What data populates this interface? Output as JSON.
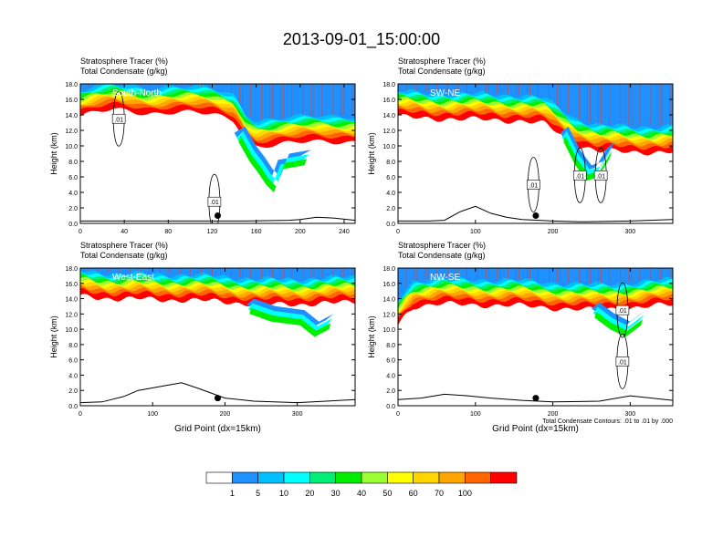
{
  "figure_title": "2013-09-01_15:00:00",
  "footnote": "Total Condensate Contours: .01 to .01 by .000",
  "colors": {
    "background": "#ffffff",
    "axis": "#000000",
    "contour": "#000000",
    "label_text": "#ffffff"
  },
  "chart_data": [
    {
      "type": "heatmap",
      "panel": "South-North",
      "header_line1": "Stratosphere Tracer   (%)",
      "header_line2": "Total Condensate   (g/kg)",
      "ylabel": "Height (km)",
      "xlabel": "",
      "xlim": [
        0,
        250
      ],
      "ylim": [
        0,
        18
      ],
      "xticks": [
        0,
        40,
        80,
        120,
        160,
        200,
        240
      ],
      "xtick_labels": [
        "0",
        "40",
        "80",
        "120",
        "160",
        "200",
        "240"
      ],
      "yticks": [
        0,
        2,
        4,
        6,
        8,
        10,
        12,
        14,
        16,
        18
      ],
      "ytick_labels": [
        "0.0",
        "2.0",
        "4.0",
        "6.0",
        "8.0",
        "10.0",
        "12.0",
        "14.0",
        "16.0",
        "18.0"
      ],
      "tracer_base_km": [
        [
          0,
          13.8
        ],
        [
          15,
          14.3
        ],
        [
          30,
          14.6
        ],
        [
          45,
          14.5
        ],
        [
          60,
          14.2
        ],
        [
          80,
          14.4
        ],
        [
          100,
          14.3
        ],
        [
          120,
          14.0
        ],
        [
          140,
          13.3
        ],
        [
          150,
          11.0
        ],
        [
          160,
          10.0
        ],
        [
          180,
          10.2
        ],
        [
          200,
          10.4
        ],
        [
          220,
          10.5
        ],
        [
          250,
          10.6
        ]
      ],
      "tracer_dip_km": [
        [
          140,
          10.5
        ],
        [
          150,
          8.0
        ],
        [
          158,
          6.5
        ],
        [
          165,
          5.0
        ],
        [
          172,
          4.0
        ],
        [
          180,
          7.0
        ],
        [
          200,
          7.5
        ]
      ],
      "terrain_km": [
        [
          0,
          0.3
        ],
        [
          50,
          0.3
        ],
        [
          100,
          0.3
        ],
        [
          150,
          0.3
        ],
        [
          190,
          0.4
        ],
        [
          200,
          0.5
        ],
        [
          215,
          0.8
        ],
        [
          230,
          0.7
        ],
        [
          250,
          0.4
        ]
      ],
      "contour_label": ".01",
      "contour_label_positions": [
        [
          35,
          13.5
        ],
        [
          122,
          2.8
        ]
      ],
      "point_marker": [
        125,
        1.0
      ]
    },
    {
      "type": "heatmap",
      "panel": "SW-NE",
      "header_line1": "Stratosphere Tracer   (%)",
      "header_line2": "Total Condensate   (g/kg)",
      "ylabel": "Height (km)",
      "xlabel": "",
      "xlim": [
        0,
        355
      ],
      "ylim": [
        0,
        18
      ],
      "xticks": [
        0,
        100,
        200,
        300
      ],
      "xtick_labels": [
        "0",
        "100",
        "200",
        "300"
      ],
      "yticks": [
        0,
        2,
        4,
        6,
        8,
        10,
        12,
        14,
        16,
        18
      ],
      "ytick_labels": [
        "0.0",
        "2.0",
        "4.0",
        "6.0",
        "8.0",
        "10.0",
        "12.0",
        "14.0",
        "16.0",
        "18.0"
      ],
      "tracer_base_km": [
        [
          0,
          13.7
        ],
        [
          40,
          13.6
        ],
        [
          80,
          13.4
        ],
        [
          120,
          13.4
        ],
        [
          160,
          13.2
        ],
        [
          190,
          12.8
        ],
        [
          210,
          11.5
        ],
        [
          230,
          10.2
        ],
        [
          260,
          9.3
        ],
        [
          300,
          9.2
        ],
        [
          355,
          9.2
        ]
      ],
      "tracer_dip_km": [
        [
          210,
          10.5
        ],
        [
          225,
          7.5
        ],
        [
          240,
          5.5
        ],
        [
          255,
          6.0
        ],
        [
          270,
          8.5
        ]
      ],
      "terrain_km": [
        [
          0,
          0.3
        ],
        [
          40,
          0.3
        ],
        [
          60,
          0.4
        ],
        [
          80,
          1.5
        ],
        [
          100,
          2.2
        ],
        [
          120,
          1.3
        ],
        [
          140,
          0.8
        ],
        [
          160,
          0.5
        ],
        [
          200,
          0.3
        ],
        [
          240,
          0.2
        ],
        [
          300,
          0.3
        ],
        [
          355,
          0.5
        ]
      ],
      "contour_label": ".01",
      "contour_label_positions": [
        [
          175,
          5.0
        ],
        [
          262,
          6.2
        ],
        [
          235,
          6.2
        ]
      ],
      "point_marker": [
        178,
        1.0
      ]
    },
    {
      "type": "heatmap",
      "panel": "West-East",
      "header_line1": "Stratosphere Tracer   (%)",
      "header_line2": "Total Condensate   (g/kg)",
      "ylabel": "Height (km)",
      "xlabel": "Grid Point (dx=15km)",
      "xlim": [
        0,
        380
      ],
      "ylim": [
        0,
        18
      ],
      "xticks": [
        0,
        100,
        200,
        300
      ],
      "xtick_labels": [
        "0",
        "100",
        "200",
        "300"
      ],
      "yticks": [
        0,
        2,
        4,
        6,
        8,
        10,
        12,
        14,
        16,
        18
      ],
      "ytick_labels": [
        "0.0",
        "2.0",
        "4.0",
        "6.0",
        "8.0",
        "10.0",
        "12.0",
        "14.0",
        "16.0",
        "18.0"
      ],
      "tracer_base_km": [
        [
          0,
          14.3
        ],
        [
          50,
          14.0
        ],
        [
          100,
          13.9
        ],
        [
          150,
          13.8
        ],
        [
          200,
          13.6
        ],
        [
          250,
          13.2
        ],
        [
          300,
          13.3
        ],
        [
          350,
          13.4
        ],
        [
          380,
          13.6
        ]
      ],
      "tracer_dip_km": [
        [
          230,
          12.0
        ],
        [
          260,
          11.0
        ],
        [
          300,
          10.5
        ],
        [
          320,
          9.0
        ],
        [
          340,
          10.0
        ]
      ],
      "terrain_km": [
        [
          0,
          0.4
        ],
        [
          30,
          0.5
        ],
        [
          60,
          1.2
        ],
        [
          80,
          2.0
        ],
        [
          110,
          2.5
        ],
        [
          140,
          3.0
        ],
        [
          165,
          2.2
        ],
        [
          200,
          1.0
        ],
        [
          240,
          0.6
        ],
        [
          300,
          0.4
        ],
        [
          340,
          0.6
        ],
        [
          380,
          0.8
        ]
      ],
      "contour_label": "",
      "contour_label_positions": [],
      "point_marker": [
        190,
        1.0
      ]
    },
    {
      "type": "heatmap",
      "panel": "NW-SE",
      "header_line1": "Stratosphere Tracer   (%)",
      "header_line2": "Total Condensate   (g/kg)",
      "ylabel": "Height (km)",
      "xlabel": "Grid Point (dx=15km)",
      "xlim": [
        0,
        355
      ],
      "ylim": [
        0,
        18
      ],
      "xticks": [
        0,
        100,
        200,
        300
      ],
      "xtick_labels": [
        "0",
        "100",
        "200",
        "300"
      ],
      "yticks": [
        0,
        2,
        4,
        6,
        8,
        10,
        12,
        14,
        16,
        18
      ],
      "ytick_labels": [
        "0.0",
        "2.0",
        "4.0",
        "6.0",
        "8.0",
        "10.0",
        "12.0",
        "14.0",
        "16.0",
        "18.0"
      ],
      "tracer_base_km": [
        [
          0,
          10.5
        ],
        [
          10,
          12.0
        ],
        [
          20,
          13.0
        ],
        [
          50,
          13.3
        ],
        [
          100,
          13.2
        ],
        [
          150,
          13.1
        ],
        [
          200,
          12.8
        ],
        [
          250,
          12.5
        ],
        [
          300,
          12.8
        ],
        [
          355,
          13.2
        ]
      ],
      "tracer_dip_km": [
        [
          250,
          11.5
        ],
        [
          270,
          10.0
        ],
        [
          290,
          9.0
        ],
        [
          310,
          10.5
        ]
      ],
      "terrain_km": [
        [
          0,
          0.8
        ],
        [
          30,
          1.0
        ],
        [
          60,
          1.5
        ],
        [
          90,
          1.3
        ],
        [
          120,
          1.0
        ],
        [
          160,
          0.7
        ],
        [
          200,
          0.5
        ],
        [
          260,
          0.6
        ],
        [
          300,
          1.3
        ],
        [
          355,
          0.7
        ]
      ],
      "contour_label": ".01",
      "contour_label_positions": [
        [
          290,
          12.5
        ],
        [
          290,
          5.8
        ]
      ],
      "point_marker": [
        178,
        1.0
      ]
    }
  ],
  "colorbar": {
    "labels": [
      "1",
      "5",
      "10",
      "20",
      "30",
      "40",
      "50",
      "60",
      "70",
      "100"
    ],
    "colors": [
      "#ffffff",
      "#1e90ff",
      "#00bfff",
      "#00ffff",
      "#00ee76",
      "#00ee00",
      "#9aff32",
      "#ffff00",
      "#ffd500",
      "#ffa500",
      "#ff6600",
      "#ff0000"
    ]
  }
}
